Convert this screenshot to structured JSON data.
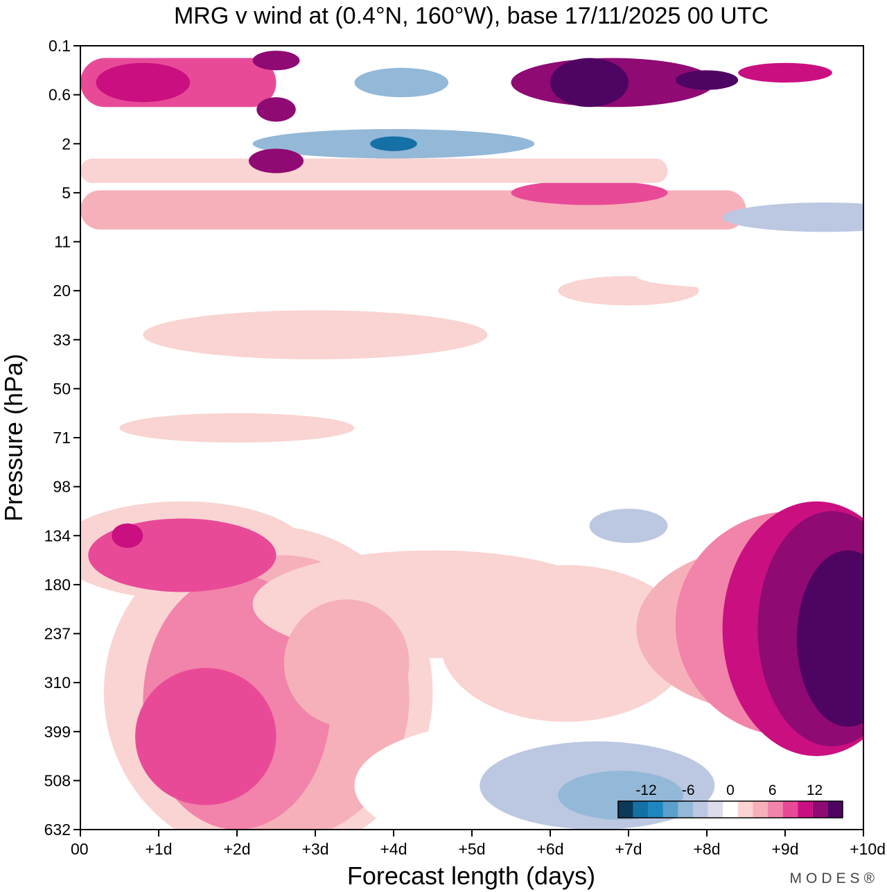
{
  "chart_data": {
    "type": "heatmap",
    "title": "MRG v wind at (0.4°N, 160°W),  base 17/11/2025  00 UTC",
    "xlabel": "Forecast length (days)",
    "ylabel": "Pressure (hPa)",
    "x_ticks": [
      "00",
      "+1d",
      "+2d",
      "+3d",
      "+4d",
      "+5d",
      "+6d",
      "+7d",
      "+8d",
      "+9d",
      "+10d"
    ],
    "x_range_days": [
      0,
      10
    ],
    "y_ticks": [
      "0.1",
      "0.6",
      "2",
      "5",
      "11",
      "20",
      "33",
      "50",
      "71",
      "98",
      "134",
      "180",
      "237",
      "310",
      "399",
      "508",
      "632"
    ],
    "colorbar": {
      "tick_labels": [
        "-12",
        "-6",
        "0",
        "6",
        "12"
      ],
      "levels": [
        -16,
        -14,
        -12,
        -10,
        -8,
        -6,
        -4,
        -2,
        2,
        4,
        6,
        8,
        10,
        12,
        14,
        16
      ],
      "colors": [
        "#0b3a58",
        "#1570a6",
        "#1e86c0",
        "#5b9fcc",
        "#93b8d8",
        "#bcc8e2",
        "#dcdcec",
        "#ffffff",
        "#f9d4d2",
        "#f6b0b9",
        "#f283aa",
        "#e84a98",
        "#ca0f80",
        "#8f0a73",
        "#4e0463"
      ]
    },
    "regions": [
      {
        "level": 2,
        "type": "ellipse",
        "day": 2.4,
        "p_index": 13.2,
        "rd": 2.1,
        "rp": 3.4
      },
      {
        "level": 2,
        "type": "ellipse",
        "day": 1.3,
        "p_index": 10.3,
        "rd": 1.6,
        "rp": 1.0
      },
      {
        "level": 4,
        "type": "ellipse",
        "day": 2.6,
        "p_index": 13.3,
        "rd": 1.6,
        "rp": 2.9
      },
      {
        "level": 6,
        "type": "ellipse",
        "day": 2.0,
        "p_index": 13.4,
        "rd": 1.2,
        "rp": 2.6
      },
      {
        "level": 8,
        "type": "ellipse",
        "day": 1.6,
        "p_index": 14.1,
        "rd": 0.9,
        "rp": 1.4
      },
      {
        "level": 8,
        "type": "ellipse",
        "day": 1.3,
        "p_index": 10.4,
        "rd": 1.2,
        "rp": 0.75
      },
      {
        "level": 10,
        "type": "ellipse",
        "day": 0.6,
        "p_index": 10.0,
        "rd": 0.2,
        "rp": 0.25
      },
      {
        "level": 2,
        "type": "ellipse",
        "day": 4.5,
        "p_index": 11.4,
        "rd": 2.3,
        "rp": 1.1
      },
      {
        "level": 4,
        "type": "ellipse",
        "day": 3.4,
        "p_index": 12.6,
        "rd": 0.8,
        "rp": 1.3
      },
      {
        "level": 2,
        "type": "ellipse",
        "day": 6.2,
        "p_index": 12.2,
        "rd": 1.6,
        "rp": 1.6
      },
      {
        "level": -2,
        "type": "ellipse",
        "day": 5.5,
        "p_index": 15.1,
        "rd": 2.0,
        "rp": 1.3
      },
      {
        "level": -6,
        "type": "ellipse",
        "day": 6.6,
        "p_index": 15.1,
        "rd": 1.5,
        "rp": 0.9
      },
      {
        "level": -8,
        "type": "ellipse",
        "day": 6.9,
        "p_index": 15.3,
        "rd": 0.8,
        "rp": 0.5
      },
      {
        "level": -2,
        "type": "ellipse",
        "day": 7.2,
        "p_index": 9.6,
        "rd": 0.9,
        "rp": 0.5
      },
      {
        "level": -6,
        "type": "ellipse",
        "day": 7.0,
        "p_index": 9.8,
        "rd": 0.5,
        "rp": 0.35
      },
      {
        "level": 2,
        "type": "ellipse",
        "day": 8.9,
        "p_index": 11.2,
        "rd": 1.0,
        "rp": 1.2
      },
      {
        "level": 4,
        "type": "ellipse",
        "day": 8.8,
        "p_index": 11.9,
        "rd": 1.7,
        "rp": 1.7
      },
      {
        "level": 6,
        "type": "ellipse",
        "day": 9.1,
        "p_index": 11.8,
        "rd": 1.5,
        "rp": 2.3
      },
      {
        "level": 10,
        "type": "ellipse",
        "day": 9.4,
        "p_index": 11.9,
        "rd": 1.2,
        "rp": 2.6
      },
      {
        "level": 12,
        "type": "ellipse",
        "day": 9.6,
        "p_index": 11.9,
        "rd": 0.95,
        "rp": 2.4
      },
      {
        "level": 16,
        "type": "ellipse",
        "day": 9.8,
        "p_index": 12.1,
        "rd": 0.65,
        "rp": 1.8
      },
      {
        "level": 4,
        "type": "band",
        "p_from": 2.95,
        "p_to": 3.75,
        "d_from": 0.0,
        "d_to": 8.5
      },
      {
        "level": 8,
        "type": "ellipse",
        "day": 6.5,
        "p_index": 3.0,
        "rd": 1.0,
        "rp": 0.25
      },
      {
        "level": 2,
        "type": "band",
        "p_from": 2.3,
        "p_to": 2.8,
        "d_from": 0.0,
        "d_to": 7.5
      },
      {
        "level": -6,
        "type": "ellipse",
        "day": 9.5,
        "p_index": 3.5,
        "rd": 1.3,
        "rp": 0.3
      },
      {
        "level": -2,
        "type": "band",
        "p_from": 3.95,
        "p_to": 4.25,
        "d_from": 0.0,
        "d_to": 3.0
      },
      {
        "level": -8,
        "type": "ellipse",
        "day": 4.0,
        "p_index": 2.0,
        "rd": 1.8,
        "rp": 0.3
      },
      {
        "level": -14,
        "type": "ellipse",
        "day": 4.0,
        "p_index": 2.0,
        "rd": 0.3,
        "rp": 0.15
      },
      {
        "level": -8,
        "type": "ellipse",
        "day": 4.1,
        "p_index": 0.75,
        "rd": 0.6,
        "rp": 0.3
      },
      {
        "level": 8,
        "type": "band",
        "p_from": 0.25,
        "p_to": 1.25,
        "d_from": 0.0,
        "d_to": 2.5
      },
      {
        "level": 10,
        "type": "ellipse",
        "day": 0.8,
        "p_index": 0.75,
        "rd": 0.6,
        "rp": 0.4
      },
      {
        "level": 12,
        "type": "ellipse",
        "day": 2.5,
        "p_index": 0.3,
        "rd": 0.3,
        "rp": 0.2
      },
      {
        "level": 12,
        "type": "ellipse",
        "day": 2.5,
        "p_index": 1.3,
        "rd": 0.25,
        "rp": 0.25
      },
      {
        "level": 12,
        "type": "ellipse",
        "day": 2.5,
        "p_index": 2.35,
        "rd": 0.35,
        "rp": 0.25
      },
      {
        "level": 12,
        "type": "ellipse",
        "day": 6.8,
        "p_index": 0.75,
        "rd": 1.3,
        "rp": 0.5
      },
      {
        "level": 16,
        "type": "ellipse",
        "day": 6.5,
        "p_index": 0.75,
        "rd": 0.5,
        "rp": 0.5
      },
      {
        "level": 14,
        "type": "ellipse",
        "day": 8.0,
        "p_index": 0.7,
        "rd": 0.4,
        "rp": 0.2
      },
      {
        "level": 10,
        "type": "ellipse",
        "day": 9.0,
        "p_index": 0.55,
        "rd": 0.6,
        "rp": 0.2
      },
      {
        "level": 2,
        "type": "ellipse",
        "day": 3.0,
        "p_index": 5.9,
        "rd": 2.2,
        "rp": 0.5
      },
      {
        "level": 2,
        "type": "ellipse",
        "day": 2.0,
        "p_index": 7.8,
        "rd": 1.5,
        "rp": 0.3
      },
      {
        "level": 2,
        "type": "ellipse",
        "day": 7.0,
        "p_index": 5.0,
        "rd": 0.9,
        "rp": 0.3
      },
      {
        "level": -2,
        "type": "ellipse",
        "day": 8.5,
        "p_index": 4.7,
        "rd": 1.4,
        "rp": 0.25
      },
      {
        "level": -2,
        "type": "ellipse",
        "day": 5.0,
        "p_index": 4.5,
        "rd": 0.8,
        "rp": 0.4
      }
    ]
  },
  "brand": {
    "logo_text": "MODES®"
  }
}
